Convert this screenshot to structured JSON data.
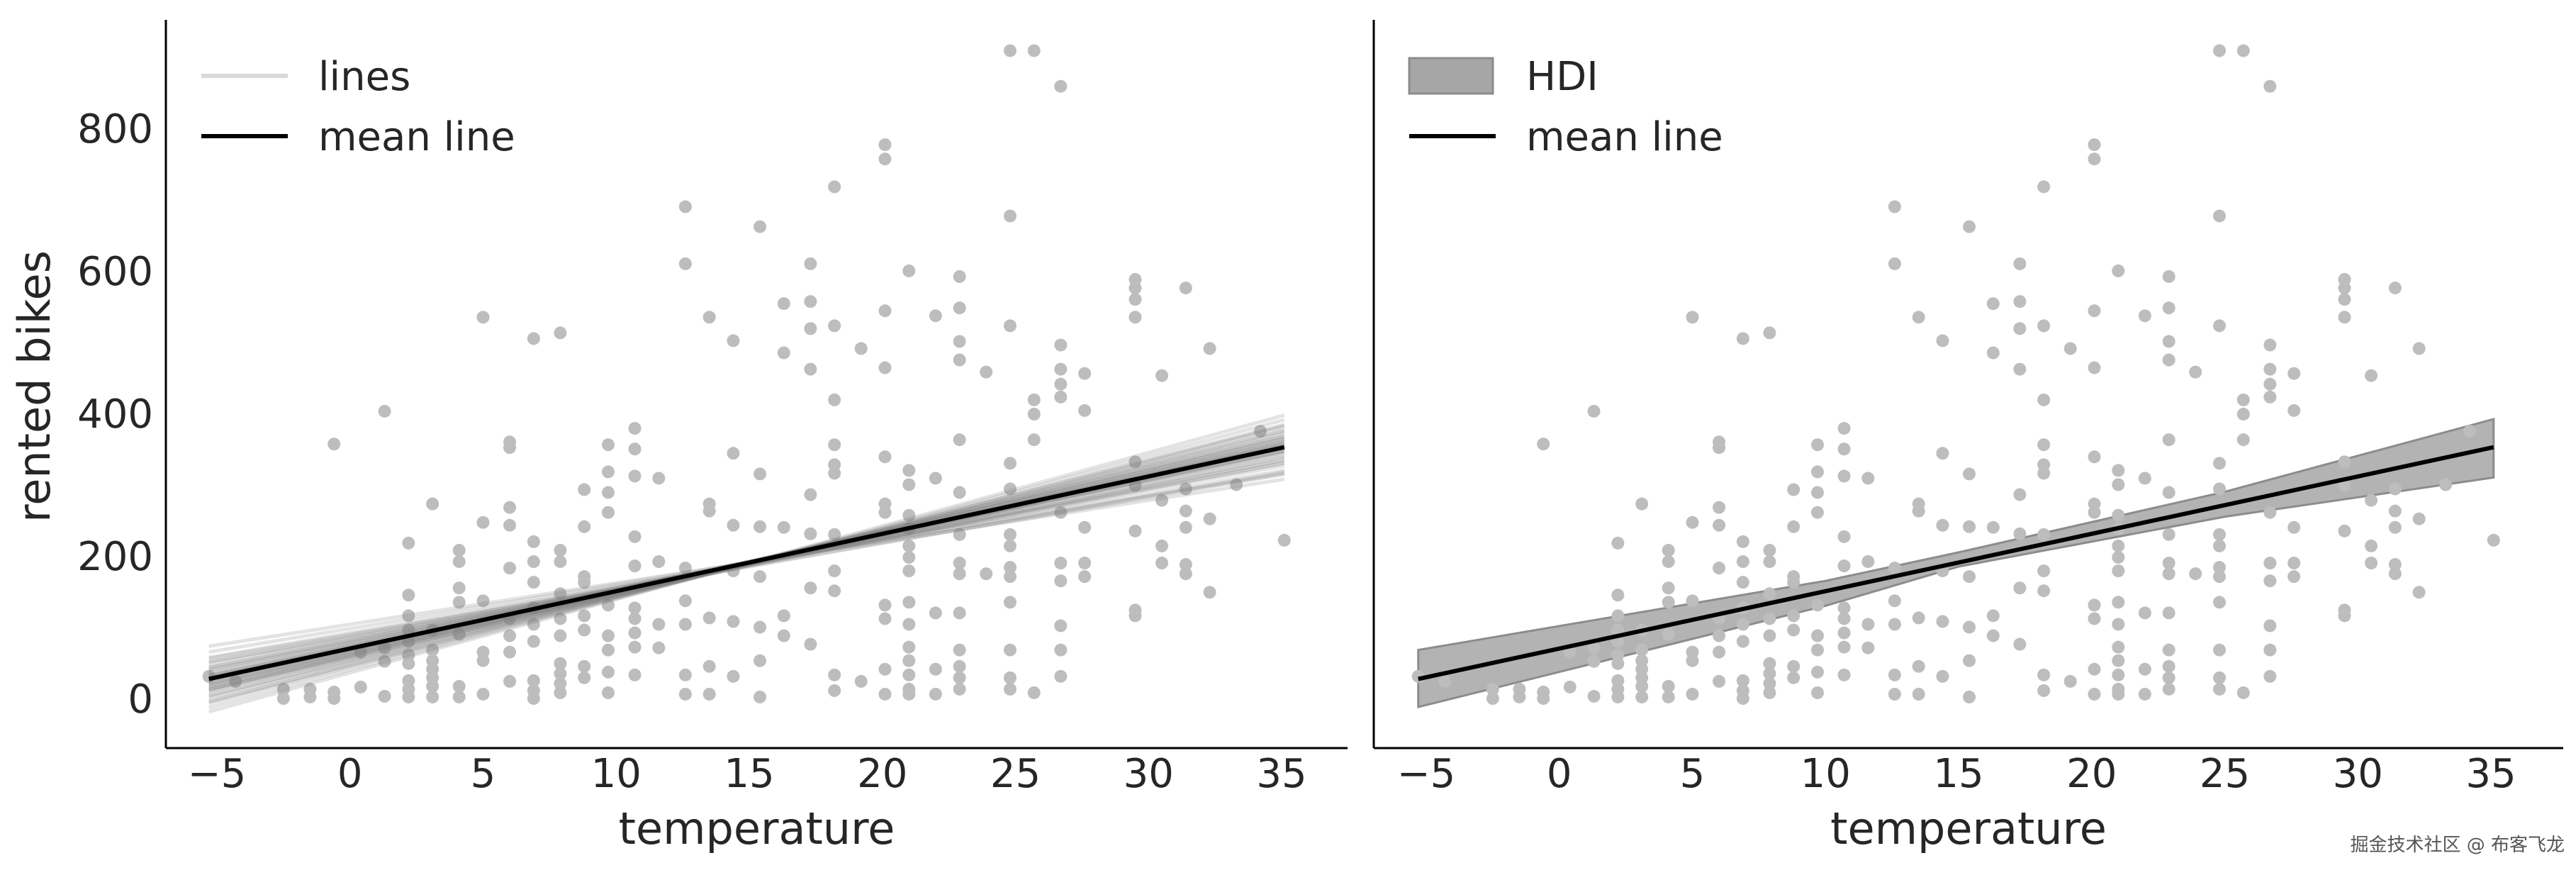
{
  "chart_data": {
    "type": "scatter",
    "colors": {
      "points": "#bdbdbd",
      "sample_lines": "#808080",
      "mean_line": "#000000",
      "hdi": "#a6a6a6",
      "axes": "#000000"
    },
    "xlim": [
      -6.9,
      37.5
    ],
    "ylim": [
      -69,
      952
    ],
    "grid": false,
    "x_ticks": [
      -5,
      0,
      5,
      10,
      15,
      20,
      25,
      30,
      35
    ],
    "x_tick_labels": [
      "−5",
      "0",
      "5",
      "10",
      "15",
      "20",
      "25",
      "30",
      "35"
    ],
    "y_ticks": [
      0,
      200,
      400,
      600,
      800
    ],
    "y_tick_labels": [
      "0",
      "200",
      "400",
      "600",
      "800"
    ],
    "scatter": [
      {
        "x": -5.3,
        "y": [
          31
        ]
      },
      {
        "x": -4.3,
        "y": [
          24
        ]
      },
      {
        "x": -2.5,
        "y": [
          13,
          0
        ]
      },
      {
        "x": -1.5,
        "y": [
          13,
          2
        ]
      },
      {
        "x": -0.6,
        "y": [
          357,
          9,
          0
        ]
      },
      {
        "x": 0.4,
        "y": [
          16,
          65
        ]
      },
      {
        "x": 1.3,
        "y": [
          403,
          52,
          3,
          71
        ]
      },
      {
        "x": 2.2,
        "y": [
          218,
          145,
          116,
          96,
          80,
          61,
          49,
          25,
          13,
          2
        ]
      },
      {
        "x": 3.1,
        "y": [
          273,
          96,
          68,
          53,
          41,
          29,
          17,
          2
        ]
      },
      {
        "x": 4.1,
        "y": [
          208,
          192,
          155,
          135,
          90,
          17,
          2
        ]
      },
      {
        "x": 5.0,
        "y": [
          535,
          247,
          137,
          65,
          53,
          6
        ]
      },
      {
        "x": 6.0,
        "y": [
          360,
          352,
          268,
          243,
          183,
          112,
          88,
          65,
          24
        ]
      },
      {
        "x": 6.9,
        "y": [
          505,
          220,
          192,
          163,
          127,
          104,
          80,
          25,
          11,
          0
        ]
      },
      {
        "x": 7.9,
        "y": [
          513,
          208,
          192,
          147,
          112,
          88,
          49,
          35,
          21,
          8
        ]
      },
      {
        "x": 8.8,
        "y": [
          293,
          241,
          171,
          163,
          116,
          96,
          45,
          29
        ]
      },
      {
        "x": 9.7,
        "y": [
          356,
          318,
          289,
          261,
          131,
          88,
          68,
          37,
          8
        ]
      },
      {
        "x": 10.7,
        "y": [
          379,
          350,
          312,
          227,
          186,
          127,
          112,
          92,
          72,
          33
        ]
      },
      {
        "x": 11.6,
        "y": [
          309,
          192,
          104,
          71
        ]
      },
      {
        "x": 12.6,
        "y": [
          690,
          610,
          183,
          137,
          104,
          33,
          6
        ]
      },
      {
        "x": 13.5,
        "y": [
          535,
          273,
          263,
          113,
          45,
          6
        ]
      },
      {
        "x": 14.4,
        "y": [
          502,
          344,
          243,
          179,
          108,
          31
        ]
      },
      {
        "x": 15.4,
        "y": [
          662,
          315,
          241,
          171,
          100,
          53,
          2
        ]
      },
      {
        "x": 16.3,
        "y": [
          554,
          485,
          240,
          116,
          88
        ]
      },
      {
        "x": 17.3,
        "y": [
          610,
          557,
          519,
          462,
          286,
          231,
          155,
          76
        ]
      },
      {
        "x": 18.2,
        "y": [
          718,
          523,
          419,
          356,
          328,
          316,
          230,
          179,
          151,
          33,
          11
        ]
      },
      {
        "x": 19.2,
        "y": [
          491,
          24
        ]
      },
      {
        "x": 20.1,
        "y": [
          777,
          757,
          544,
          464,
          339,
          273,
          261,
          131,
          112,
          41,
          6
        ]
      },
      {
        "x": 21.0,
        "y": [
          600,
          320,
          300,
          257,
          238,
          214,
          198,
          179,
          135,
          104,
          72,
          53,
          33,
          13,
          6
        ]
      },
      {
        "x": 22.0,
        "y": [
          537,
          309,
          120,
          41,
          6
        ]
      },
      {
        "x": 22.9,
        "y": [
          592,
          548,
          501,
          475,
          363,
          289,
          230,
          190,
          175,
          120,
          68,
          45,
          29,
          13
        ]
      },
      {
        "x": 23.9,
        "y": [
          458,
          175
        ]
      },
      {
        "x": 24.8,
        "y": [
          909,
          677,
          523,
          330,
          294,
          230,
          214,
          184,
          171,
          135,
          68,
          29,
          13
        ]
      },
      {
        "x": 25.7,
        "y": [
          909,
          419,
          399,
          363,
          8
        ]
      },
      {
        "x": 26.7,
        "y": [
          859,
          496,
          462,
          441,
          423,
          261,
          190,
          165,
          102,
          68,
          31
        ]
      },
      {
        "x": 27.6,
        "y": [
          456,
          404,
          240,
          190,
          171
        ]
      },
      {
        "x": 29.5,
        "y": [
          588,
          576,
          560,
          535,
          332,
          299,
          235,
          124,
          116
        ]
      },
      {
        "x": 30.5,
        "y": [
          453,
          278,
          214,
          190
        ]
      },
      {
        "x": 31.4,
        "y": [
          576,
          294,
          263,
          240,
          188,
          175
        ]
      },
      {
        "x": 32.3,
        "y": [
          491,
          252,
          149
        ]
      },
      {
        "x": 33.3,
        "y": [
          300
        ]
      },
      {
        "x": 34.2,
        "y": [
          375
        ]
      },
      {
        "x": 35.1,
        "y": [
          222
        ]
      }
    ],
    "line_x_range": [
      -5.3,
      35.1
    ],
    "mean_line": {
      "intercept": 70,
      "slope": 8.05
    },
    "panels": [
      {
        "xlabel": "temperature",
        "ylabel": "rented bikes",
        "legend": {
          "placement": "top-left",
          "entries": [
            {
              "label": "lines",
              "kind": "line-light"
            },
            {
              "label": "mean line",
              "kind": "line-dark"
            }
          ]
        },
        "sample_lines": [
          [
            104,
            5.8
          ],
          [
            98,
            6.2
          ],
          [
            92,
            6.5
          ],
          [
            88,
            6.8
          ],
          [
            85,
            7.0
          ],
          [
            82,
            7.2
          ],
          [
            80,
            7.4
          ],
          [
            77,
            7.6
          ],
          [
            75,
            7.7
          ],
          [
            73,
            7.8
          ],
          [
            71,
            7.9
          ],
          [
            70,
            8.0
          ],
          [
            69,
            8.1
          ],
          [
            67,
            8.2
          ],
          [
            65,
            8.3
          ],
          [
            63,
            8.4
          ],
          [
            61,
            8.5
          ],
          [
            59,
            8.7
          ],
          [
            56,
            8.9
          ],
          [
            53,
            9.1
          ],
          [
            50,
            9.3
          ],
          [
            47,
            9.5
          ],
          [
            44,
            9.7
          ],
          [
            40,
            10.0
          ],
          [
            36,
            10.3
          ],
          [
            78,
            7.3
          ],
          [
            66,
            8.4
          ],
          [
            58,
            8.6
          ],
          [
            72,
            7.6
          ],
          [
            62,
            8.6
          ],
          [
            86,
            6.6
          ],
          [
            52,
            9.2
          ],
          [
            74,
            7.9
          ],
          [
            68,
            7.95
          ],
          [
            60,
            8.8
          ],
          [
            90,
            6.4
          ],
          [
            46,
            9.6
          ],
          [
            81,
            7.1
          ],
          [
            57,
            8.8
          ],
          [
            64,
            8.3
          ]
        ]
      },
      {
        "xlabel": "temperature",
        "ylabel": "",
        "legend": {
          "placement": "top-left",
          "entries": [
            {
              "label": "HDI",
              "kind": "patch"
            },
            {
              "label": "mean line",
              "kind": "line-dark"
            }
          ]
        },
        "hdi": {
          "x": [
            -5.3,
            10,
            15,
            25,
            35.1
          ],
          "lower": [
            -12,
            130,
            185,
            255,
            310
          ],
          "upper": [
            68,
            165,
            205,
            290,
            392
          ]
        }
      }
    ]
  },
  "watermark": "掘金技术社区 @ 布客飞龙"
}
